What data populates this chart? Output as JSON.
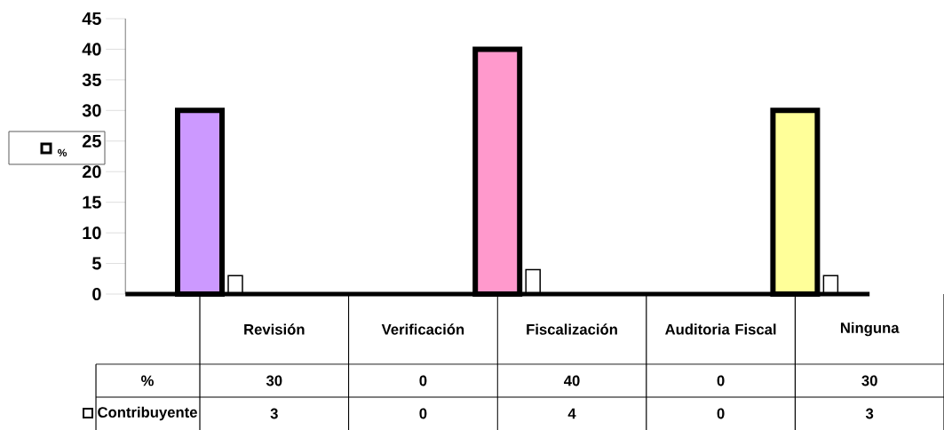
{
  "chart_data": {
    "type": "bar",
    "categories": [
      "Revisión",
      "Verificación",
      "Fiscalización",
      "Auditoria Fiscal",
      "Ninguna"
    ],
    "series": [
      {
        "name": "%",
        "colors": [
          "#cc99ff",
          "#99ccff",
          "#ff99cc",
          "#ccffcc",
          "#ffff99"
        ],
        "values": [
          30,
          0,
          40,
          0,
          30
        ]
      },
      {
        "name": "Contribuyente",
        "color": "#ffffff",
        "values": [
          3,
          0,
          4,
          0,
          3
        ]
      }
    ],
    "ylim": [
      0,
      45
    ],
    "yticks": [
      0,
      5,
      10,
      15,
      20,
      25,
      30,
      35,
      40,
      45
    ],
    "data_labels": true,
    "legend": "left",
    "grid": false
  }
}
